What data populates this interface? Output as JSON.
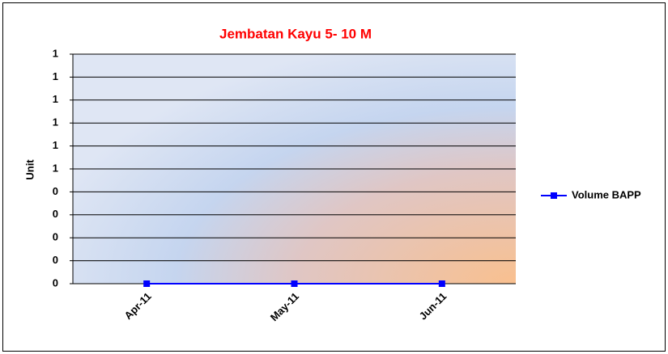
{
  "chart_data": {
    "type": "line",
    "title": "Jembatan Kayu 5- 10 M",
    "ylabel": "Unit",
    "categories": [
      "Apr-11",
      "May-11",
      "Jun-11"
    ],
    "series": [
      {
        "name": "Volume BAPP",
        "color": "#0000ff",
        "values": [
          0,
          0,
          0
        ]
      }
    ],
    "ylim": [
      0,
      1
    ],
    "yticks": [
      0,
      {
        "value": 0.1,
        "label": "0"
      },
      {
        "value": 0.2,
        "label": "0"
      },
      {
        "value": 0.3,
        "label": "0"
      },
      {
        "value": 0.4,
        "label": "0"
      },
      {
        "value": 0.5,
        "label": "1"
      },
      {
        "value": 0.6,
        "label": "1"
      },
      {
        "value": 0.7,
        "label": "1"
      },
      {
        "value": 0.8,
        "label": "1"
      },
      {
        "value": 0.9,
        "label": "1"
      },
      1
    ],
    "grid": true,
    "legend": "right"
  }
}
